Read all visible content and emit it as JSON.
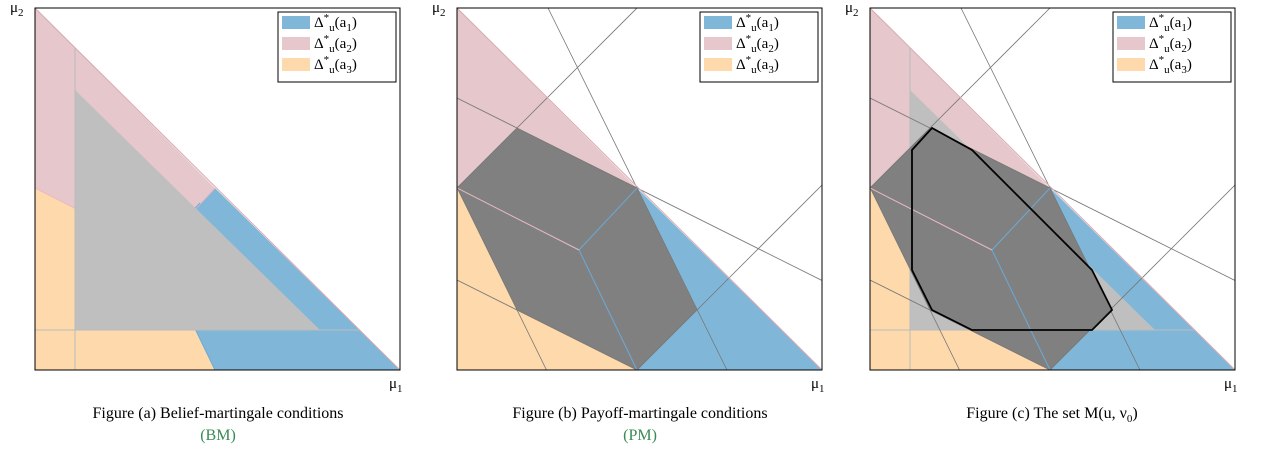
{
  "panels": [
    {
      "axis_labels": {
        "x": [
          {
            "t": "μ"
          },
          {
            "t": "1",
            "sub": true
          }
        ],
        "y": [
          {
            "t": "μ"
          },
          {
            "t": "2",
            "sub": true
          }
        ]
      },
      "legend": [
        {
          "color": "#80b7d9",
          "label": [
            {
              "t": "Δ"
            },
            {
              "t": "*",
              "sup": true
            },
            {
              "t": "u",
              "sub": true
            },
            {
              "t": "(a"
            },
            {
              "t": "1",
              "sub": true
            },
            {
              "t": ")"
            }
          ]
        },
        {
          "color": "#e6c7cc",
          "label": [
            {
              "t": "Δ"
            },
            {
              "t": "*",
              "sup": true
            },
            {
              "t": "u",
              "sub": true
            },
            {
              "t": "(a"
            },
            {
              "t": "2",
              "sub": true
            },
            {
              "t": ")"
            }
          ]
        },
        {
          "color": "#fdd9ac",
          "label": [
            {
              "t": "Δ"
            },
            {
              "t": "*",
              "sup": true
            },
            {
              "t": "u",
              "sub": true
            },
            {
              "t": "(a"
            },
            {
              "t": "3",
              "sub": true
            },
            {
              "t": ")"
            }
          ]
        }
      ],
      "caption": [
        [
          {
            "t": "Figure (a) Belief-martingale conditions"
          }
        ],
        [
          {
            "t": "(BM)",
            "color": "#3a8a55"
          }
        ]
      ]
    },
    {
      "axis_labels": {
        "x": [
          {
            "t": "μ"
          },
          {
            "t": "1",
            "sub": true
          }
        ],
        "y": [
          {
            "t": "μ"
          },
          {
            "t": "2",
            "sub": true
          }
        ]
      },
      "legend": [
        {
          "color": "#80b7d9",
          "label": [
            {
              "t": "Δ"
            },
            {
              "t": "*",
              "sup": true
            },
            {
              "t": "u",
              "sub": true
            },
            {
              "t": "(a"
            },
            {
              "t": "1",
              "sub": true
            },
            {
              "t": ")"
            }
          ]
        },
        {
          "color": "#e6c7cc",
          "label": [
            {
              "t": "Δ"
            },
            {
              "t": "*",
              "sup": true
            },
            {
              "t": "u",
              "sub": true
            },
            {
              "t": "(a"
            },
            {
              "t": "2",
              "sub": true
            },
            {
              "t": ")"
            }
          ]
        },
        {
          "color": "#fdd9ac",
          "label": [
            {
              "t": "Δ"
            },
            {
              "t": "*",
              "sup": true
            },
            {
              "t": "u",
              "sub": true
            },
            {
              "t": "(a"
            },
            {
              "t": "3",
              "sub": true
            },
            {
              "t": ")"
            }
          ]
        }
      ],
      "caption": [
        [
          {
            "t": "Figure (b) Payoff-martingale conditions"
          }
        ],
        [
          {
            "t": "(PM)",
            "color": "#3a8a55"
          }
        ]
      ]
    },
    {
      "axis_labels": {
        "x": [
          {
            "t": "μ"
          },
          {
            "t": "1",
            "sub": true
          }
        ],
        "y": [
          {
            "t": "μ"
          },
          {
            "t": "2",
            "sub": true
          }
        ]
      },
      "legend": [
        {
          "color": "#80b7d9",
          "label": [
            {
              "t": "Δ"
            },
            {
              "t": "*",
              "sup": true
            },
            {
              "t": "u",
              "sub": true
            },
            {
              "t": "(a"
            },
            {
              "t": "1",
              "sub": true
            },
            {
              "t": ")"
            }
          ]
        },
        {
          "color": "#e6c7cc",
          "label": [
            {
              "t": "Δ"
            },
            {
              "t": "*",
              "sup": true
            },
            {
              "t": "u",
              "sub": true
            },
            {
              "t": "(a"
            },
            {
              "t": "2",
              "sub": true
            },
            {
              "t": ")"
            }
          ]
        },
        {
          "color": "#fdd9ac",
          "label": [
            {
              "t": "Δ"
            },
            {
              "t": "*",
              "sup": true
            },
            {
              "t": "u",
              "sub": true
            },
            {
              "t": "(a"
            },
            {
              "t": "3",
              "sub": true
            },
            {
              "t": ")"
            }
          ]
        }
      ],
      "caption": [
        [
          {
            "t": "Figure (c) The set M(u, ν"
          },
          {
            "t": "0",
            "sub": true
          },
          {
            "t": ")"
          }
        ]
      ]
    }
  ]
}
